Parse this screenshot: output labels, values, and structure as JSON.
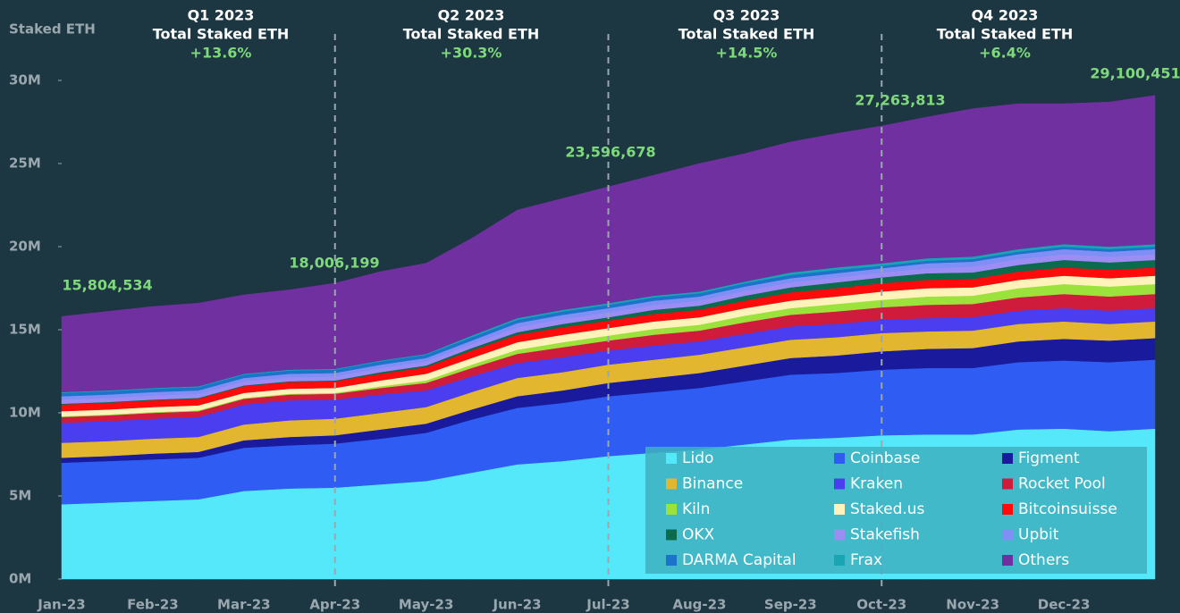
{
  "chart_data": {
    "type": "stacked-area",
    "y_label": "Staked ETH",
    "categories": [
      "Jan-23",
      null,
      "Feb-23",
      null,
      "Mar-23",
      null,
      "Apr-23",
      null,
      "May-23",
      null,
      "Jun-23",
      null,
      "Jul-23",
      null,
      "Aug-23",
      null,
      "Sep-23",
      null,
      "Oct-23",
      null,
      "Nov-23",
      null,
      "Dec-23",
      null,
      null
    ],
    "ylim": [
      0,
      30
    ],
    "yticks": [
      {
        "value": 0,
        "label": "0M"
      },
      {
        "value": 5,
        "label": "5M"
      },
      {
        "value": 10,
        "label": "10M"
      },
      {
        "value": 15,
        "label": "15M"
      },
      {
        "value": 20,
        "label": "20M"
      },
      {
        "value": 25,
        "label": "25M"
      },
      {
        "value": 30,
        "label": "30M"
      }
    ],
    "quarters": [
      {
        "name": "Q1 2023",
        "label": "Total Staked ETH",
        "change": "+13.6%"
      },
      {
        "name": "Q2 2023",
        "label": "Total Staked ETH",
        "change": "+30.3%"
      },
      {
        "name": "Q3 2023",
        "label": "Total Staked ETH",
        "change": "+14.5%"
      },
      {
        "name": "Q4 2023",
        "label": "Total Staked ETH",
        "change": "+6.4%"
      }
    ],
    "totals": [
      "15,804,534",
      "18,006,199",
      "23,596,678",
      "27,263,813",
      "29,100,451"
    ],
    "series": [
      {
        "name": "Lido",
        "color": "#55e8fa",
        "values": [
          4.5,
          4.6,
          4.7,
          4.8,
          5.3,
          5.45,
          5.5,
          5.7,
          5.9,
          6.4,
          6.9,
          7.1,
          7.4,
          7.6,
          7.8,
          8.1,
          8.4,
          8.5,
          8.65,
          8.7,
          8.7,
          9.0,
          9.05,
          8.9,
          9.05
        ]
      },
      {
        "name": "Coinbase",
        "color": "#2f5cf2",
        "values": [
          2.5,
          2.5,
          2.5,
          2.5,
          2.6,
          2.6,
          2.65,
          2.75,
          2.9,
          3.2,
          3.4,
          3.5,
          3.6,
          3.65,
          3.7,
          3.8,
          3.9,
          3.9,
          3.95,
          4.0,
          4.0,
          4.05,
          4.1,
          4.15,
          4.15
        ]
      },
      {
        "name": "Figment",
        "color": "#1a1a9c",
        "values": [
          0.3,
          0.3,
          0.35,
          0.35,
          0.45,
          0.5,
          0.5,
          0.55,
          0.55,
          0.6,
          0.7,
          0.75,
          0.8,
          0.85,
          0.9,
          0.95,
          1.0,
          1.05,
          1.1,
          1.15,
          1.2,
          1.25,
          1.3,
          1.3,
          1.3
        ]
      },
      {
        "name": "Binance",
        "color": "#e2b62e",
        "values": [
          0.9,
          0.9,
          0.9,
          0.9,
          0.95,
          1.0,
          1.0,
          1.0,
          1.0,
          1.05,
          1.1,
          1.1,
          1.1,
          1.1,
          1.1,
          1.1,
          1.1,
          1.1,
          1.1,
          1.05,
          1.05,
          1.05,
          1.05,
          1.0,
          1.0
        ]
      },
      {
        "name": "Kraken",
        "color": "#4a3ef0",
        "values": [
          1.2,
          1.2,
          1.2,
          1.2,
          1.2,
          1.2,
          1.15,
          1.1,
          1.0,
          0.95,
          0.9,
          0.9,
          0.85,
          0.85,
          0.8,
          0.8,
          0.8,
          0.8,
          0.8,
          0.8,
          0.8,
          0.8,
          0.8,
          0.8,
          0.8
        ]
      },
      {
        "name": "Rocket Pool",
        "color": "#cf1c3c",
        "values": [
          0.35,
          0.35,
          0.35,
          0.35,
          0.35,
          0.35,
          0.35,
          0.4,
          0.45,
          0.5,
          0.55,
          0.6,
          0.6,
          0.65,
          0.65,
          0.7,
          0.7,
          0.75,
          0.75,
          0.8,
          0.8,
          0.8,
          0.85,
          0.85,
          0.85
        ]
      },
      {
        "name": "Kiln",
        "color": "#9ce23c",
        "values": [
          0.05,
          0.05,
          0.05,
          0.05,
          0.05,
          0.05,
          0.05,
          0.1,
          0.15,
          0.2,
          0.25,
          0.3,
          0.3,
          0.35,
          0.35,
          0.4,
          0.4,
          0.45,
          0.45,
          0.5,
          0.5,
          0.55,
          0.6,
          0.6,
          0.6
        ]
      },
      {
        "name": "Staked.us",
        "color": "#fff3bb",
        "values": [
          0.3,
          0.3,
          0.3,
          0.3,
          0.3,
          0.3,
          0.3,
          0.35,
          0.4,
          0.4,
          0.45,
          0.45,
          0.45,
          0.45,
          0.45,
          0.45,
          0.45,
          0.45,
          0.5,
          0.5,
          0.5,
          0.5,
          0.5,
          0.5,
          0.5
        ]
      },
      {
        "name": "Bitcoinsuisse",
        "color": "#ff0b0b",
        "values": [
          0.4,
          0.4,
          0.4,
          0.4,
          0.4,
          0.4,
          0.4,
          0.4,
          0.4,
          0.45,
          0.45,
          0.45,
          0.45,
          0.45,
          0.45,
          0.45,
          0.5,
          0.5,
          0.5,
          0.5,
          0.5,
          0.5,
          0.5,
          0.5,
          0.5
        ]
      },
      {
        "name": "OKX",
        "color": "#0b6b4c",
        "values": [
          0.05,
          0.05,
          0.05,
          0.05,
          0.05,
          0.05,
          0.05,
          0.1,
          0.1,
          0.15,
          0.15,
          0.2,
          0.2,
          0.25,
          0.25,
          0.3,
          0.3,
          0.35,
          0.35,
          0.4,
          0.4,
          0.4,
          0.45,
          0.45,
          0.45
        ]
      },
      {
        "name": "Stakefish",
        "color": "#9c8df5",
        "values": [
          0.25,
          0.25,
          0.25,
          0.25,
          0.25,
          0.25,
          0.25,
          0.25,
          0.25,
          0.25,
          0.3,
          0.3,
          0.3,
          0.3,
          0.3,
          0.3,
          0.3,
          0.3,
          0.3,
          0.3,
          0.35,
          0.35,
          0.35,
          0.35,
          0.35
        ]
      },
      {
        "name": "Upbit",
        "color": "#7f8ff6",
        "values": [
          0.2,
          0.2,
          0.2,
          0.2,
          0.2,
          0.2,
          0.2,
          0.2,
          0.2,
          0.2,
          0.25,
          0.25,
          0.25,
          0.25,
          0.25,
          0.25,
          0.25,
          0.25,
          0.25,
          0.3,
          0.3,
          0.3,
          0.3,
          0.3,
          0.3
        ]
      },
      {
        "name": "DARMA Capital",
        "color": "#1b74c9",
        "values": [
          0.2,
          0.2,
          0.2,
          0.2,
          0.2,
          0.2,
          0.2,
          0.2,
          0.2,
          0.2,
          0.2,
          0.2,
          0.2,
          0.2,
          0.2,
          0.2,
          0.2,
          0.2,
          0.15,
          0.15,
          0.15,
          0.15,
          0.15,
          0.15,
          0.15
        ]
      },
      {
        "name": "Frax",
        "color": "#1aa5b5",
        "values": [
          0.05,
          0.05,
          0.05,
          0.05,
          0.05,
          0.05,
          0.05,
          0.05,
          0.05,
          0.1,
          0.1,
          0.1,
          0.1,
          0.1,
          0.1,
          0.1,
          0.15,
          0.15,
          0.15,
          0.15,
          0.15,
          0.15,
          0.15,
          0.15,
          0.15
        ]
      },
      {
        "name": "Others",
        "color": "#7030a0",
        "values": [
          4.55,
          4.75,
          4.9,
          5.0,
          4.75,
          4.8,
          5.15,
          5.35,
          5.45,
          5.85,
          6.5,
          6.7,
          7.0,
          7.25,
          7.7,
          7.7,
          7.85,
          8.05,
          8.26,
          8.5,
          8.9,
          8.75,
          8.45,
          8.7,
          8.95
        ]
      }
    ]
  }
}
